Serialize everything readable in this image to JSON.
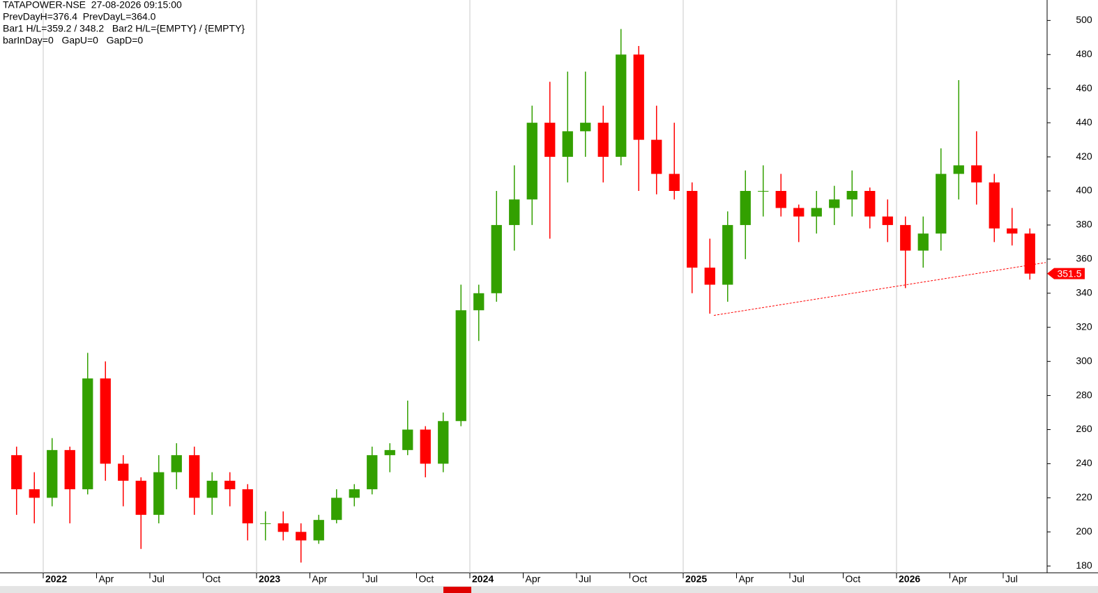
{
  "chart_data": {
    "type": "candlestick",
    "info": [
      "TATAPOWER-NSE  27-08-2026 09:15:00",
      "PrevDayH=376.4  PrevDayL=364.0",
      "Bar1 H/L=359.2 / 348.2   Bar2 H/L={EMPTY} / {EMPTY}",
      "barInDay=0   GapU=0   GapD=0"
    ],
    "categories": [
      null,
      null,
      "2022",
      null,
      null,
      "Apr",
      null,
      null,
      "Jul",
      null,
      null,
      "Oct",
      null,
      null,
      "2023",
      null,
      null,
      "Apr",
      null,
      null,
      "Jul",
      null,
      null,
      "Oct",
      null,
      null,
      "2024",
      null,
      null,
      "Apr",
      null,
      null,
      "Jul",
      null,
      null,
      "Oct",
      null,
      null,
      "2025",
      null,
      null,
      "Apr",
      null,
      null,
      "Jul",
      null,
      null,
      "Oct",
      null,
      null,
      "2026",
      null,
      null,
      "Apr",
      null,
      null,
      "Jul",
      null
    ],
    "open": [
      245,
      225,
      220,
      248,
      225,
      290,
      240,
      230,
      210,
      235,
      245,
      220,
      230,
      225,
      205,
      205,
      200,
      195,
      207,
      220,
      225,
      245,
      248,
      260,
      240,
      265,
      330,
      340,
      380,
      395,
      440,
      420,
      435,
      440,
      420,
      480,
      430,
      410,
      400,
      355,
      345,
      380,
      400,
      400,
      390,
      385,
      390,
      395,
      400,
      385,
      380,
      365,
      375,
      410,
      415,
      405,
      378,
      375
    ],
    "high": [
      250,
      235,
      255,
      250,
      305,
      300,
      245,
      232,
      245,
      252,
      250,
      235,
      235,
      228,
      212,
      212,
      205,
      210,
      225,
      228,
      250,
      252,
      277,
      262,
      270,
      345,
      345,
      400,
      415,
      450,
      464,
      470,
      470,
      450,
      495,
      485,
      450,
      440,
      405,
      372,
      388,
      412,
      415,
      410,
      392,
      400,
      403,
      412,
      402,
      395,
      385,
      385,
      425,
      465,
      435,
      410,
      390,
      378
    ],
    "low": [
      210,
      205,
      215,
      205,
      222,
      230,
      215,
      190,
      205,
      225,
      210,
      210,
      215,
      195,
      195,
      195,
      182,
      193,
      205,
      215,
      222,
      235,
      245,
      232,
      235,
      262,
      312,
      335,
      365,
      380,
      372,
      405,
      420,
      405,
      415,
      400,
      398,
      395,
      340,
      328,
      335,
      360,
      385,
      385,
      370,
      375,
      380,
      385,
      378,
      370,
      343,
      355,
      365,
      395,
      392,
      370,
      368,
      348
    ],
    "close": [
      225,
      220,
      248,
      225,
      290,
      240,
      230,
      210,
      235,
      245,
      220,
      230,
      225,
      205,
      205,
      200,
      195,
      207,
      220,
      225,
      245,
      248,
      260,
      240,
      265,
      330,
      340,
      380,
      395,
      440,
      420,
      435,
      440,
      420,
      480,
      430,
      410,
      400,
      355,
      345,
      380,
      400,
      400,
      390,
      385,
      390,
      395,
      400,
      385,
      380,
      365,
      375,
      410,
      415,
      405,
      378,
      375,
      351.5
    ],
    "up_color": "#33a000",
    "down_color": "#ff0000",
    "trendline": {
      "start": 327,
      "end": 358,
      "color": "#ff0000"
    },
    "ylim": [
      176,
      512
    ],
    "yticks": [
      180,
      200,
      220,
      240,
      260,
      280,
      300,
      320,
      340,
      360,
      380,
      400,
      420,
      440,
      460,
      480,
      500
    ]
  }
}
